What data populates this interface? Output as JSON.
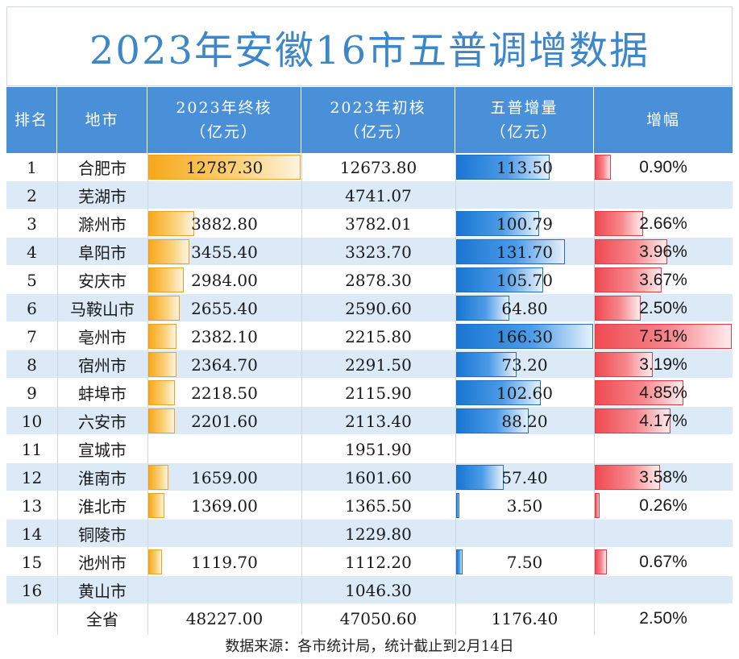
{
  "title": "2023年安徽16市五普调增数据",
  "headers": {
    "rank": "排名",
    "city": "地市",
    "final_line1": "2023年终核",
    "final_line2": "（亿元）",
    "initial_line1": "2023年初核",
    "initial_line2": "（亿元）",
    "increase_line1": "五普增量",
    "increase_line2": "（亿元）",
    "growth": "增幅"
  },
  "rows": [
    {
      "rank": "1",
      "city": "合肥市",
      "final": "12787.30",
      "initial": "12673.80",
      "increase": "113.50",
      "growth": "0.90%"
    },
    {
      "rank": "2",
      "city": "芜湖市",
      "final": "",
      "initial": "4741.07",
      "increase": "",
      "growth": ""
    },
    {
      "rank": "3",
      "city": "滁州市",
      "final": "3882.80",
      "initial": "3782.01",
      "increase": "100.79",
      "growth": "2.66%"
    },
    {
      "rank": "4",
      "city": "阜阳市",
      "final": "3455.40",
      "initial": "3323.70",
      "increase": "131.70",
      "growth": "3.96%"
    },
    {
      "rank": "5",
      "city": "安庆市",
      "final": "2984.00",
      "initial": "2878.30",
      "increase": "105.70",
      "growth": "3.67%"
    },
    {
      "rank": "6",
      "city": "马鞍山市",
      "final": "2655.40",
      "initial": "2590.60",
      "increase": "64.80",
      "growth": "2.50%"
    },
    {
      "rank": "7",
      "city": "亳州市",
      "final": "2382.10",
      "initial": "2215.80",
      "increase": "166.30",
      "growth": "7.51%"
    },
    {
      "rank": "8",
      "city": "宿州市",
      "final": "2364.70",
      "initial": "2291.50",
      "increase": "73.20",
      "growth": "3.19%"
    },
    {
      "rank": "9",
      "city": "蚌埠市",
      "final": "2218.50",
      "initial": "2115.90",
      "increase": "102.60",
      "growth": "4.85%"
    },
    {
      "rank": "10",
      "city": "六安市",
      "final": "2201.60",
      "initial": "2113.40",
      "increase": "88.20",
      "growth": "4.17%"
    },
    {
      "rank": "11",
      "city": "宣城市",
      "final": "",
      "initial": "1951.90",
      "increase": "",
      "growth": ""
    },
    {
      "rank": "12",
      "city": "淮南市",
      "final": "1659.00",
      "initial": "1601.60",
      "increase": "57.40",
      "growth": "3.58%"
    },
    {
      "rank": "13",
      "city": "淮北市",
      "final": "1369.00",
      "initial": "1365.50",
      "increase": "3.50",
      "growth": "0.26%"
    },
    {
      "rank": "14",
      "city": "铜陵市",
      "final": "",
      "initial": "1229.80",
      "increase": "",
      "growth": ""
    },
    {
      "rank": "15",
      "city": "池州市",
      "final": "1119.70",
      "initial": "1112.20",
      "increase": "7.50",
      "growth": "0.67%"
    },
    {
      "rank": "16",
      "city": "黄山市",
      "final": "",
      "initial": "1046.30",
      "increase": "",
      "growth": ""
    }
  ],
  "total": {
    "label": "全省",
    "final": "48227.00",
    "initial": "47050.60",
    "increase": "1176.40",
    "growth": "2.50%"
  },
  "source": "数据来源：各市统计局，统计截止到2月14日",
  "colors": {
    "header_bg": "#4a90d9",
    "title_text": "#3d86c8",
    "final_bar": "#f7a81b",
    "increase_bar": "#1976d2",
    "growth_bar": "#ef4a52",
    "row_alt": "#dce9f6"
  },
  "chart_data": {
    "type": "table",
    "title": "2023年安徽16市五普调增数据",
    "columns": [
      "排名",
      "地市",
      "2023年终核（亿元）",
      "2023年初核（亿元）",
      "五普增量（亿元）",
      "增幅"
    ],
    "categories": [
      "合肥市",
      "芜湖市",
      "滁州市",
      "阜阳市",
      "安庆市",
      "马鞍山市",
      "亳州市",
      "宿州市",
      "蚌埠市",
      "六安市",
      "宣城市",
      "淮南市",
      "淮北市",
      "铜陵市",
      "池州市",
      "黄山市"
    ],
    "series": [
      {
        "name": "2023年终核（亿元）",
        "values": [
          12787.3,
          null,
          3882.8,
          3455.4,
          2984.0,
          2655.4,
          2382.1,
          2364.7,
          2218.5,
          2201.6,
          null,
          1659.0,
          1369.0,
          null,
          1119.7,
          null
        ]
      },
      {
        "name": "2023年初核（亿元）",
        "values": [
          12673.8,
          4741.07,
          3782.01,
          3323.7,
          2878.3,
          2590.6,
          2215.8,
          2291.5,
          2115.9,
          2113.4,
          1951.9,
          1601.6,
          1365.5,
          1229.8,
          1112.2,
          1046.3
        ]
      },
      {
        "name": "五普增量（亿元）",
        "values": [
          113.5,
          null,
          100.79,
          131.7,
          105.7,
          64.8,
          166.3,
          73.2,
          102.6,
          88.2,
          null,
          57.4,
          3.5,
          null,
          7.5,
          null
        ]
      },
      {
        "name": "增幅",
        "values": [
          0.9,
          null,
          2.66,
          3.96,
          3.67,
          2.5,
          7.51,
          3.19,
          4.85,
          4.17,
          null,
          3.58,
          0.26,
          null,
          0.67,
          null
        ]
      }
    ],
    "data_bars": {
      "final_max": 12787.3,
      "increase_max": 166.3,
      "growth_max": 7.51
    }
  }
}
